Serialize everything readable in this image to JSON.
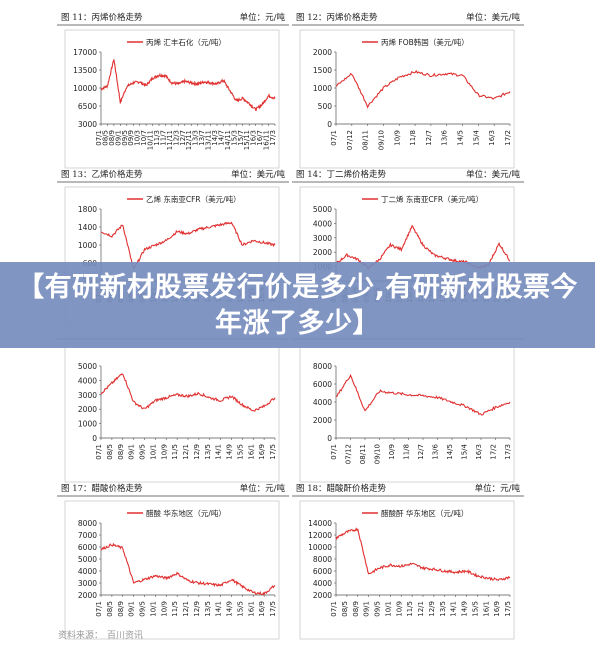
{
  "banner": {
    "title": "【有研新材股票发行价是多少,有研新材股票今年涨了多少】"
  },
  "source": {
    "label": "资料来源：",
    "value": "百川资讯"
  },
  "charts": [
    {
      "fig": "图 11：丙烯价格走势",
      "unit": "单位：元/吨",
      "legend": "丙烯 汇丰石化（元/吨）",
      "yticks": [
        "17000",
        "13500",
        "10000",
        "6500",
        "3000"
      ]
    },
    {
      "fig": "图 12：丙烯价格走势",
      "unit": "单位：美元/吨",
      "legend": "丙烯 FOB韩国（美元/吨）",
      "yticks": [
        "2000",
        "1500",
        "1000",
        "500",
        "0"
      ]
    },
    {
      "fig": "图 13：乙烯价格走势",
      "unit": "单位：美元/吨",
      "legend": "乙烯 东南亚CFR（美元/吨）",
      "yticks": [
        "1800",
        "1400",
        "1000",
        "600",
        "200"
      ]
    },
    {
      "fig": "图 14：丁二烯价格走势",
      "unit": "单位：美元/吨",
      "legend": "丁二烯 东南亚CFR（美元/吨）",
      "yticks": [
        "5000",
        "4000",
        "3000",
        "2000",
        "1000",
        "0"
      ]
    },
    {
      "fig": "",
      "unit": "",
      "legend": "",
      "yticks": [
        "5000",
        "4000",
        "3000",
        "2000",
        "1000",
        "0"
      ]
    },
    {
      "fig": "",
      "unit": "",
      "legend": "",
      "yticks": [
        "8000",
        "6000",
        "4000",
        "2000",
        "0"
      ]
    },
    {
      "fig": "图 17：醋酸价格走势",
      "unit": "单位：元/吨",
      "legend": "醋酸 华东地区（元/吨）",
      "yticks": [
        "8000",
        "7000",
        "6000",
        "5000",
        "4000",
        "3000",
        "2000"
      ]
    },
    {
      "fig": "图 18：醋酸酐价格走势",
      "unit": "单位：元/吨",
      "legend": "醋酸酐 华东地区（元/吨）",
      "yticks": [
        "14000",
        "12000",
        "10000",
        "8000",
        "6000",
        "4000",
        "2000"
      ]
    }
  ],
  "chart_data": [
    {
      "type": "line",
      "title": "图 11：丙烯价格走势",
      "ylabel": "单位：元/吨",
      "ylim": [
        3000,
        17000
      ],
      "categories": [
        "07/1",
        "08/5",
        "08/9",
        "09/1",
        "09/5",
        "09/9",
        "10/3",
        "10/7",
        "10/11",
        "11/3",
        "11/7",
        "11/11",
        "12/3",
        "12/7",
        "12/11",
        "13/3",
        "13/7",
        "13/11",
        "14/3",
        "14/7",
        "14/11",
        "15/3",
        "15/7",
        "15/11",
        "16/3",
        "16/7",
        "16/11",
        "17/3"
      ],
      "series": [
        {
          "name": "丙烯 汇丰石化（元/吨）",
          "color": "#e03030",
          "values": [
            9800,
            10400,
            15600,
            7200,
            10300,
            11000,
            11200,
            10500,
            11900,
            12500,
            12400,
            11000,
            10800,
            11300,
            11000,
            10800,
            11200,
            11000,
            10800,
            11500,
            9500,
            7500,
            8000,
            7000,
            5800,
            6800,
            8500,
            8000
          ]
        }
      ]
    },
    {
      "type": "line",
      "title": "图 12：丙烯价格走势",
      "ylabel": "单位：美元/吨",
      "ylim": [
        0,
        2000
      ],
      "categories": [
        "07/1",
        "07/12",
        "08/11",
        "09/10",
        "10/9",
        "11/8",
        "12/7",
        "13/6",
        "14/5",
        "15/4",
        "16/3",
        "17/2"
      ],
      "series": [
        {
          "name": "丙烯 FOB韩国（美元/吨）",
          "color": "#e03030",
          "values": [
            1050,
            1400,
            500,
            1000,
            1300,
            1450,
            1350,
            1400,
            1350,
            800,
            700,
            900
          ]
        }
      ]
    },
    {
      "type": "line",
      "title": "图 13：乙烯价格走势",
      "ylabel": "单位：美元/吨",
      "ylim": [
        200,
        1800
      ],
      "categories": [
        "07/1",
        "08/5",
        "08/9",
        "09/1",
        "09/5",
        "10/1",
        "10/9",
        "11/5",
        "12/1",
        "12/9",
        "13/5",
        "14/1",
        "14/9",
        "15/5",
        "16/1",
        "16/9",
        "17/5"
      ],
      "series": [
        {
          "name": "乙烯 东南亚CFR（美元/吨）",
          "color": "#e03030",
          "values": [
            1300,
            1200,
            1450,
            450,
            900,
            1000,
            1100,
            1300,
            1250,
            1350,
            1400,
            1450,
            1500,
            1000,
            1100,
            1050,
            1000
          ]
        }
      ]
    },
    {
      "type": "line",
      "title": "图 14：丁二烯价格走势",
      "ylabel": "单位：美元/吨",
      "ylim": [
        0,
        5000
      ],
      "categories": [
        "07/1",
        "08/5",
        "08/9",
        "09/1",
        "09/5",
        "10/1",
        "10/9",
        "11/5",
        "12/1",
        "12/9",
        "13/5",
        "14/1",
        "14/9",
        "15/5",
        "16/1",
        "16/9",
        "17/5"
      ],
      "series": [
        {
          "name": "丁二烯 东南亚CFR（美元/吨）",
          "color": "#e03030",
          "values": [
            1200,
            1800,
            1500,
            900,
            1500,
            2500,
            2200,
            3800,
            2500,
            1800,
            1600,
            1400,
            1300,
            900,
            1100,
            2600,
            1400
          ]
        }
      ]
    },
    {
      "type": "line",
      "ylim": [
        0,
        5000
      ],
      "categories": [
        "07/1",
        "08/5",
        "08/9",
        "09/1",
        "09/5",
        "10/1",
        "10/9",
        "11/5",
        "12/1",
        "12/9",
        "13/5",
        "14/1",
        "14/9",
        "15/5",
        "16/1",
        "16/9",
        "17/5"
      ],
      "series": [
        {
          "color": "#e03030",
          "values": [
            3100,
            3800,
            4500,
            2500,
            2000,
            2600,
            2800,
            3000,
            2900,
            3100,
            2800,
            2600,
            2900,
            2300,
            1900,
            2200,
            2800
          ]
        }
      ]
    },
    {
      "type": "line",
      "ylim": [
        0,
        8000
      ],
      "categories": [
        "07/1",
        "07/12",
        "08/11",
        "09/10",
        "10/9",
        "11/8",
        "12/7",
        "13/6",
        "14/5",
        "15/4",
        "16/3",
        "17/2",
        "17/3"
      ],
      "series": [
        {
          "color": "#e03030",
          "values": [
            4500,
            7000,
            3000,
            5200,
            5000,
            4800,
            4700,
            4500,
            4000,
            3500,
            2600,
            3400,
            4000
          ]
        }
      ]
    },
    {
      "type": "line",
      "title": "图 17：醋酸价格走势",
      "ylabel": "单位：元/吨",
      "ylim": [
        2000,
        8000
      ],
      "categories": [
        "07/1",
        "08/5",
        "08/9",
        "09/1",
        "09/5",
        "10/1",
        "10/9",
        "11/5",
        "12/1",
        "12/9",
        "13/5",
        "14/1",
        "14/9",
        "15/5",
        "16/1",
        "16/9",
        "17/5"
      ],
      "series": [
        {
          "name": "醋酸 华东地区（元/吨）",
          "color": "#e03030",
          "values": [
            5800,
            6200,
            5900,
            3000,
            3300,
            3600,
            3400,
            3800,
            3200,
            3000,
            2900,
            2800,
            3300,
            2700,
            2200,
            2100,
            2800
          ]
        }
      ]
    },
    {
      "type": "line",
      "title": "图 18：醋酸酐价格走势",
      "ylabel": "单位：元/吨",
      "ylim": [
        2000,
        14000
      ],
      "categories": [
        "07/1",
        "08/5",
        "08/9",
        "09/1",
        "09/5",
        "10/1",
        "10/9",
        "11/5",
        "12/1",
        "12/9",
        "13/5",
        "14/1",
        "14/9",
        "15/5",
        "16/1",
        "16/9",
        "17/5"
      ],
      "series": [
        {
          "name": "醋酸酐 华东地区（元/吨）",
          "color": "#e03030",
          "values": [
            11500,
            12500,
            13000,
            5500,
            6500,
            7000,
            6800,
            7200,
            6500,
            6300,
            6000,
            5800,
            6000,
            5200,
            4800,
            4500,
            5000
          ]
        }
      ]
    }
  ]
}
